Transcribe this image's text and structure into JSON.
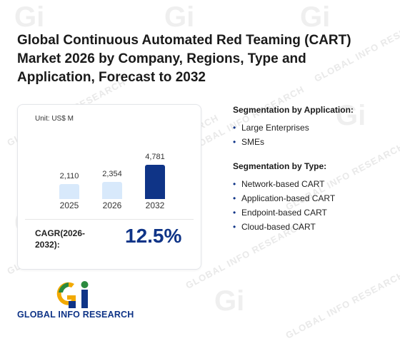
{
  "title": "Global Continuous Automated Red Teaming (CART) Market 2026 by Company, Regions, Type and Application, Forecast to 2032",
  "chart": {
    "unit": "Unit: US$ M",
    "cagr_label": "CAGR(2026-2032):",
    "cagr_value": "12.5%",
    "colors": {
      "light_bar": "#d8e9fb",
      "highlight_bar": "#0f3487"
    }
  },
  "chart_data": {
    "type": "bar",
    "categories": [
      "2025",
      "2026",
      "2032"
    ],
    "values": [
      2110,
      2354,
      4781
    ],
    "value_labels": [
      "2,110",
      "2,354",
      "4,781"
    ],
    "ylabel": "",
    "ylim": [
      0,
      4781
    ]
  },
  "segmentation": {
    "application": {
      "heading": "Segmentation by Application:",
      "items": [
        "Large Enterprises",
        "SMEs"
      ]
    },
    "type": {
      "heading": "Segmentation by Type:",
      "items": [
        "Network-based CART",
        "Application-based CART",
        "Endpoint-based CART",
        "Cloud-based CART"
      ]
    }
  },
  "logo": {
    "text": "GLOBAL INFO RESEARCH",
    "icon": "gi-logo-icon"
  },
  "watermark": {
    "text": "GLOBAL INFO RESEARCH"
  }
}
